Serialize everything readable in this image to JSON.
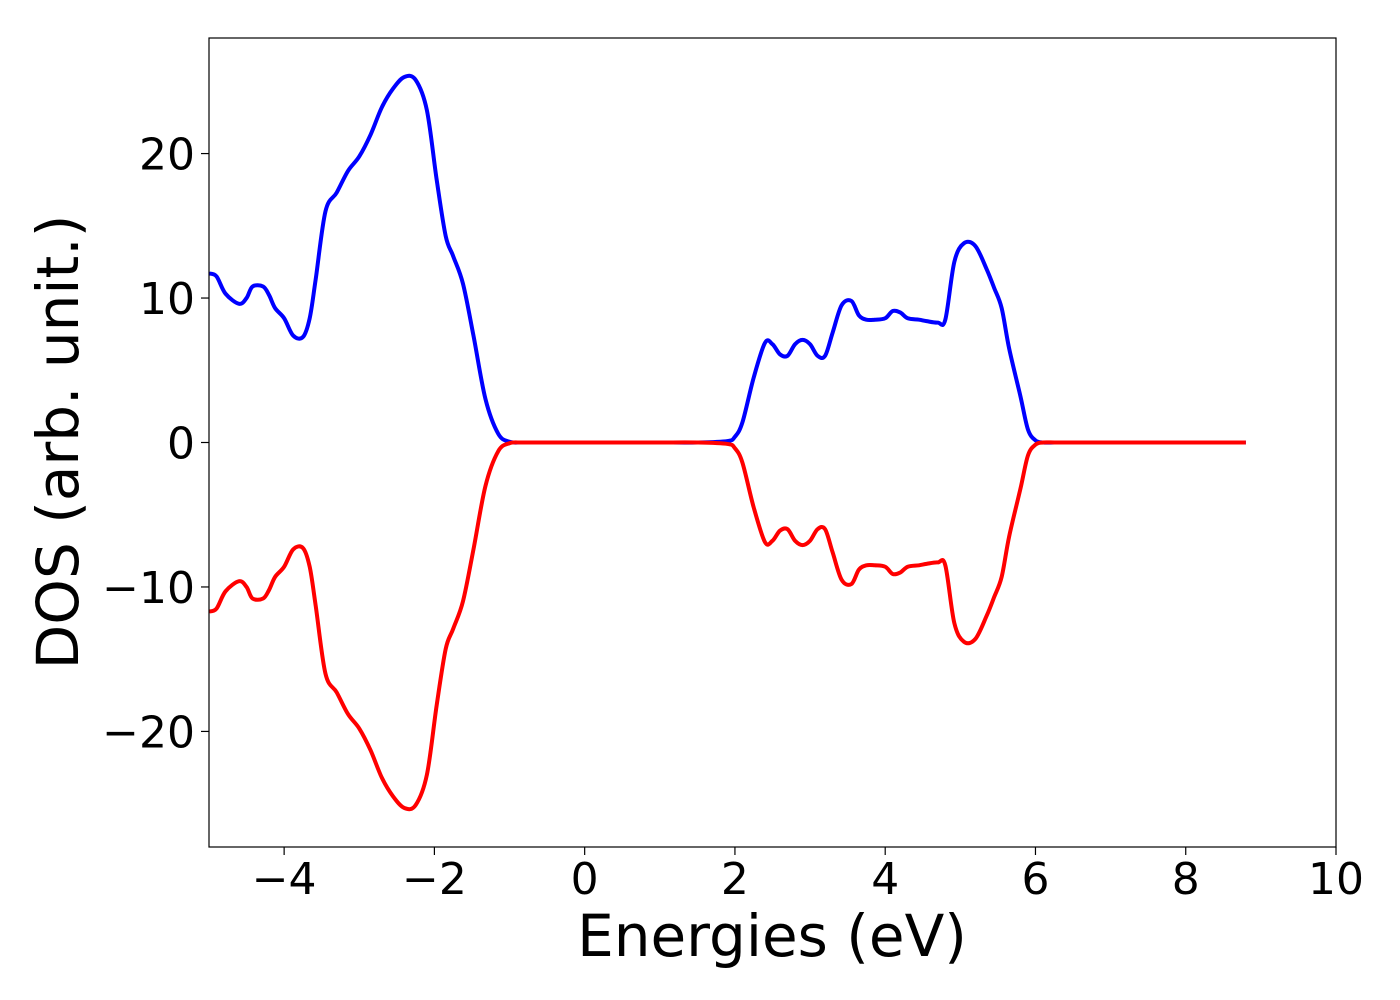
{
  "chart_data": {
    "type": "line",
    "title": "",
    "xlabel": "Energies (eV)",
    "ylabel": "DOS (arb. unit.)",
    "xlim": [
      -5,
      10
    ],
    "ylim": [
      -28,
      28
    ],
    "x_ticks": [
      -4,
      -2,
      0,
      2,
      4,
      6,
      8,
      10
    ],
    "x_tick_labels": [
      "−4",
      "−2",
      "0",
      "2",
      "4",
      "6",
      "8",
      "10"
    ],
    "y_ticks": [
      -20,
      -10,
      0,
      10,
      20
    ],
    "y_tick_labels": [
      "−20",
      "−10",
      "0",
      "10",
      "20"
    ],
    "grid": false,
    "legend": "none",
    "series": [
      {
        "color": "#0000ff",
        "x": [
          -5.0,
          -4.9,
          -4.78,
          -4.6,
          -4.5,
          -4.42,
          -4.28,
          -4.2,
          -4.12,
          -4.0,
          -3.88,
          -3.75,
          -3.66,
          -3.58,
          -3.45,
          -3.3,
          -3.15,
          -3.0,
          -2.85,
          -2.7,
          -2.55,
          -2.4,
          -2.25,
          -2.1,
          -1.97,
          -1.85,
          -1.75,
          -1.62,
          -1.48,
          -1.32,
          -1.15,
          -1.0,
          -0.85,
          -0.7,
          -0.55,
          -0.4,
          0.0,
          0.5,
          1.0,
          1.5,
          1.9,
          2.0,
          2.1,
          2.25,
          2.4,
          2.5,
          2.6,
          2.7,
          2.8,
          2.9,
          3.0,
          3.1,
          3.2,
          3.3,
          3.42,
          3.55,
          3.65,
          3.75,
          3.86,
          4.0,
          4.1,
          4.2,
          4.3,
          4.45,
          4.55,
          4.7,
          4.8,
          4.92,
          5.05,
          5.2,
          5.35,
          5.45,
          5.55,
          5.65,
          5.8,
          5.9,
          6.0,
          6.1,
          6.25,
          6.4,
          6.55,
          6.7,
          6.82,
          6.95,
          7.1,
          7.3,
          8.0,
          8.8
        ],
        "values": [
          11.7,
          11.5,
          10.3,
          9.6,
          10.0,
          10.8,
          10.8,
          10.2,
          9.3,
          8.6,
          7.4,
          7.3,
          8.6,
          11.3,
          16.0,
          17.3,
          18.8,
          19.8,
          21.3,
          23.2,
          24.5,
          25.3,
          25.1,
          23.0,
          18.2,
          14.3,
          12.9,
          11.0,
          7.4,
          3.0,
          0.6,
          0.05,
          0.0,
          0.0,
          0.0,
          0.0,
          0.0,
          0.0,
          0.0,
          0.0,
          0.1,
          0.4,
          1.4,
          4.5,
          6.9,
          6.8,
          6.1,
          6.0,
          6.8,
          7.1,
          6.8,
          6.0,
          6.0,
          7.6,
          9.5,
          9.8,
          8.8,
          8.5,
          8.5,
          8.6,
          9.1,
          9.0,
          8.6,
          8.5,
          8.4,
          8.3,
          8.5,
          12.5,
          13.8,
          13.6,
          12.0,
          10.7,
          9.3,
          6.5,
          3.2,
          0.9,
          0.15,
          0.0,
          0.0,
          0.0,
          0.0,
          0.0,
          0.0,
          0.0,
          0.0,
          0.0,
          0.0,
          0.0
        ]
      },
      {
        "color": "#ff0000",
        "x": [
          -5.0,
          -4.9,
          -4.78,
          -4.6,
          -4.5,
          -4.42,
          -4.28,
          -4.2,
          -4.12,
          -4.0,
          -3.88,
          -3.75,
          -3.66,
          -3.58,
          -3.45,
          -3.3,
          -3.15,
          -3.0,
          -2.85,
          -2.7,
          -2.55,
          -2.4,
          -2.25,
          -2.1,
          -1.97,
          -1.85,
          -1.75,
          -1.62,
          -1.48,
          -1.32,
          -1.15,
          -1.0,
          -0.85,
          -0.7,
          -0.55,
          -0.4,
          0.0,
          0.5,
          1.0,
          1.5,
          1.9,
          2.0,
          2.1,
          2.25,
          2.4,
          2.5,
          2.6,
          2.7,
          2.8,
          2.9,
          3.0,
          3.1,
          3.2,
          3.3,
          3.42,
          3.55,
          3.65,
          3.75,
          3.86,
          4.0,
          4.1,
          4.2,
          4.3,
          4.45,
          4.55,
          4.7,
          4.8,
          4.92,
          5.05,
          5.2,
          5.35,
          5.45,
          5.55,
          5.65,
          5.8,
          5.9,
          6.0,
          6.1,
          6.25,
          6.4,
          6.55,
          6.7,
          6.82,
          6.95,
          7.1,
          7.3,
          8.0,
          8.8
        ],
        "values": [
          -11.7,
          -11.5,
          -10.3,
          -9.6,
          -10.0,
          -10.8,
          -10.8,
          -10.2,
          -9.3,
          -8.6,
          -7.4,
          -7.3,
          -8.6,
          -11.3,
          -16.0,
          -17.3,
          -18.8,
          -19.8,
          -21.3,
          -23.2,
          -24.5,
          -25.3,
          -25.1,
          -23.0,
          -18.2,
          -14.3,
          -12.9,
          -11.0,
          -7.4,
          -3.0,
          -0.6,
          -0.05,
          0.0,
          0.0,
          0.0,
          0.0,
          0.0,
          0.0,
          0.0,
          0.0,
          -0.1,
          -0.4,
          -1.4,
          -4.5,
          -6.9,
          -6.8,
          -6.1,
          -6.0,
          -6.8,
          -7.1,
          -6.8,
          -6.0,
          -6.0,
          -7.6,
          -9.5,
          -9.8,
          -8.8,
          -8.5,
          -8.5,
          -8.6,
          -9.1,
          -9.0,
          -8.6,
          -8.5,
          -8.4,
          -8.3,
          -8.5,
          -12.5,
          -13.8,
          -13.6,
          -12.0,
          -10.7,
          -9.3,
          -6.5,
          -3.2,
          -0.9,
          -0.15,
          0.0,
          0.0,
          0.0,
          0.0,
          0.0,
          0.0,
          0.0,
          0.0,
          0.0,
          0.0,
          0.0
        ]
      }
    ]
  }
}
